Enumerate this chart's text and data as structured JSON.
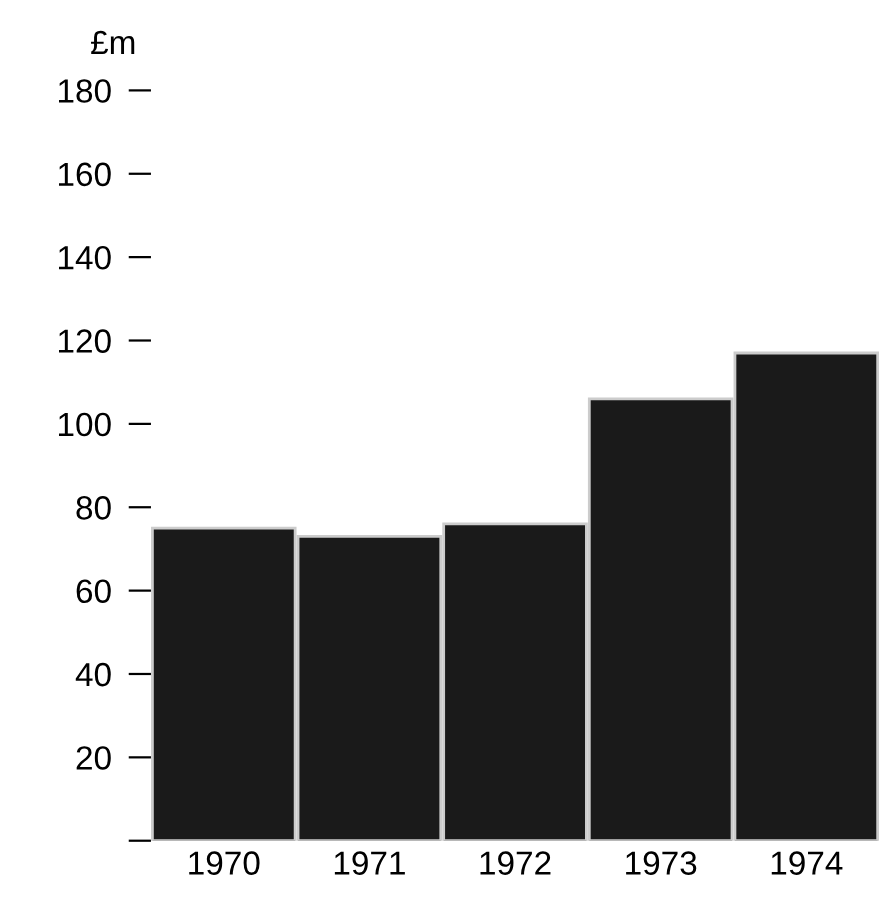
{
  "chart_data": {
    "type": "bar",
    "ylabel": "£m",
    "categories": [
      "1970",
      "1971",
      "1972",
      "1973",
      "1974"
    ],
    "values": [
      75,
      73,
      76,
      106,
      117
    ],
    "color": "#1a1a1a",
    "ylim": [
      0,
      180
    ],
    "yticks": [
      {
        "value": 0,
        "label": null
      },
      20,
      40,
      60,
      80,
      100,
      120,
      140,
      160,
      180
    ],
    "grid": false
  }
}
